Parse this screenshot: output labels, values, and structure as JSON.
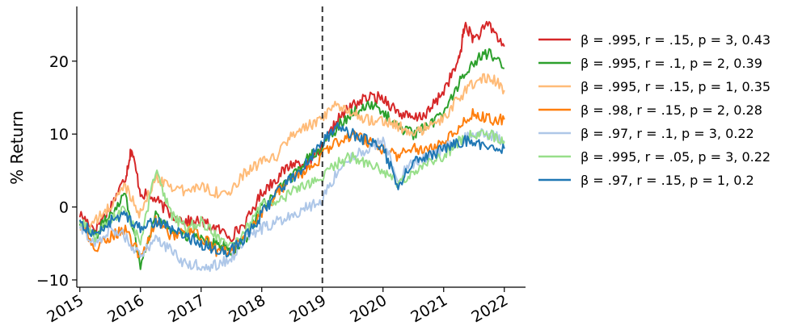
{
  "chart_data": {
    "type": "line",
    "ylabel": "% Return",
    "xlabel": "",
    "title": "",
    "x_ticks": [
      "2015",
      "2016",
      "2017",
      "2018",
      "2019",
      "2020",
      "2021",
      "2022"
    ],
    "y_ticks": [
      "−10",
      "0",
      "10",
      "20"
    ],
    "xlim": [
      2014.95,
      2022.35
    ],
    "ylim": [
      -11,
      27.5
    ],
    "vline": {
      "x": 2019.0,
      "style": "dashed"
    },
    "legend_position": "outside-right",
    "grid": false,
    "series": [
      {
        "name": "β = .995, r = .15, p = 3, 0.43",
        "color": "#d62728",
        "points": [
          [
            2015.0,
            -1
          ],
          [
            2015.25,
            -3
          ],
          [
            2015.5,
            0
          ],
          [
            2015.75,
            4
          ],
          [
            2015.85,
            8
          ],
          [
            2016.0,
            2
          ],
          [
            2016.25,
            1
          ],
          [
            2016.5,
            -1
          ],
          [
            2016.75,
            -2
          ],
          [
            2017.0,
            -2
          ],
          [
            2017.25,
            -3
          ],
          [
            2017.5,
            -4
          ],
          [
            2017.75,
            -2
          ],
          [
            2018.0,
            2
          ],
          [
            2018.25,
            4
          ],
          [
            2018.5,
            6
          ],
          [
            2018.75,
            6
          ],
          [
            2019.0,
            8
          ],
          [
            2019.25,
            12
          ],
          [
            2019.5,
            14
          ],
          [
            2019.75,
            15
          ],
          [
            2020.0,
            15
          ],
          [
            2020.25,
            13
          ],
          [
            2020.5,
            12
          ],
          [
            2020.75,
            13
          ],
          [
            2021.0,
            16
          ],
          [
            2021.25,
            20
          ],
          [
            2021.35,
            25
          ],
          [
            2021.5,
            23
          ],
          [
            2021.75,
            25
          ],
          [
            2022.0,
            22
          ]
        ]
      },
      {
        "name": "β = .995, r = .1, p = 2, 0.39",
        "color": "#2ca02c",
        "points": [
          [
            2015.0,
            -2
          ],
          [
            2015.25,
            -4
          ],
          [
            2015.5,
            -1
          ],
          [
            2015.75,
            2
          ],
          [
            2016.0,
            -8
          ],
          [
            2016.25,
            -1
          ],
          [
            2016.5,
            -3
          ],
          [
            2016.75,
            -4
          ],
          [
            2017.0,
            -4
          ],
          [
            2017.25,
            -5
          ],
          [
            2017.5,
            -6
          ],
          [
            2017.75,
            -4
          ],
          [
            2018.0,
            0
          ],
          [
            2018.25,
            2
          ],
          [
            2018.5,
            4
          ],
          [
            2018.75,
            7
          ],
          [
            2019.0,
            8
          ],
          [
            2019.25,
            11
          ],
          [
            2019.5,
            13
          ],
          [
            2019.75,
            14
          ],
          [
            2020.0,
            13
          ],
          [
            2020.25,
            11
          ],
          [
            2020.5,
            10
          ],
          [
            2020.75,
            11
          ],
          [
            2021.0,
            13
          ],
          [
            2021.25,
            17
          ],
          [
            2021.5,
            20
          ],
          [
            2021.75,
            21
          ],
          [
            2022.0,
            19
          ]
        ]
      },
      {
        "name": "β = .995, r = .15, p = 1, 0.35",
        "color": "#ffbb78",
        "points": [
          [
            2015.0,
            -3
          ],
          [
            2015.25,
            -2
          ],
          [
            2015.5,
            0
          ],
          [
            2015.75,
            3
          ],
          [
            2016.0,
            -1
          ],
          [
            2016.25,
            4
          ],
          [
            2016.5,
            3
          ],
          [
            2016.75,
            2
          ],
          [
            2017.0,
            3
          ],
          [
            2017.25,
            2
          ],
          [
            2017.5,
            2
          ],
          [
            2017.75,
            5
          ],
          [
            2018.0,
            6
          ],
          [
            2018.25,
            7
          ],
          [
            2018.5,
            10
          ],
          [
            2018.75,
            11
          ],
          [
            2019.0,
            12
          ],
          [
            2019.25,
            14
          ],
          [
            2019.5,
            13
          ],
          [
            2019.75,
            12
          ],
          [
            2020.0,
            12
          ],
          [
            2020.25,
            11
          ],
          [
            2020.5,
            10
          ],
          [
            2020.75,
            11
          ],
          [
            2021.0,
            12
          ],
          [
            2021.25,
            15
          ],
          [
            2021.5,
            17
          ],
          [
            2021.75,
            18
          ],
          [
            2022.0,
            16
          ]
        ]
      },
      {
        "name": "β = .98, r = .15, p = 2, 0.28",
        "color": "#ff7f0e",
        "points": [
          [
            2015.0,
            -2
          ],
          [
            2015.25,
            -6
          ],
          [
            2015.5,
            -4
          ],
          [
            2015.75,
            -3
          ],
          [
            2016.0,
            -7
          ],
          [
            2016.25,
            -2
          ],
          [
            2016.5,
            -4
          ],
          [
            2016.75,
            -3
          ],
          [
            2017.0,
            -4
          ],
          [
            2017.25,
            -6
          ],
          [
            2017.5,
            -6
          ],
          [
            2017.75,
            -4
          ],
          [
            2018.0,
            -1
          ],
          [
            2018.25,
            2
          ],
          [
            2018.5,
            4
          ],
          [
            2018.75,
            5
          ],
          [
            2019.0,
            7
          ],
          [
            2019.25,
            9
          ],
          [
            2019.5,
            10
          ],
          [
            2019.75,
            9
          ],
          [
            2020.0,
            8
          ],
          [
            2020.25,
            7
          ],
          [
            2020.5,
            8
          ],
          [
            2020.75,
            8
          ],
          [
            2021.0,
            9
          ],
          [
            2021.25,
            11
          ],
          [
            2021.5,
            13
          ],
          [
            2021.75,
            12
          ],
          [
            2022.0,
            12
          ]
        ]
      },
      {
        "name": "β = .97, r = .1, p = 3, 0.22",
        "color": "#aec7e8",
        "points": [
          [
            2015.0,
            -3
          ],
          [
            2015.25,
            -5
          ],
          [
            2015.5,
            -3
          ],
          [
            2015.75,
            -4
          ],
          [
            2016.0,
            -7
          ],
          [
            2016.25,
            -4
          ],
          [
            2016.5,
            -6
          ],
          [
            2016.75,
            -8
          ],
          [
            2017.0,
            -8
          ],
          [
            2017.25,
            -8
          ],
          [
            2017.5,
            -7
          ],
          [
            2017.75,
            -4
          ],
          [
            2018.0,
            -3
          ],
          [
            2018.25,
            -2
          ],
          [
            2018.5,
            -1
          ],
          [
            2018.75,
            0
          ],
          [
            2019.0,
            1
          ],
          [
            2019.25,
            5
          ],
          [
            2019.5,
            7
          ],
          [
            2019.75,
            8
          ],
          [
            2020.0,
            9
          ],
          [
            2020.25,
            4
          ],
          [
            2020.5,
            6
          ],
          [
            2020.75,
            7
          ],
          [
            2021.0,
            8
          ],
          [
            2021.25,
            9
          ],
          [
            2021.5,
            10
          ],
          [
            2021.75,
            10
          ],
          [
            2022.0,
            9
          ]
        ]
      },
      {
        "name": "β = .995, r = .05, p = 3, 0.22",
        "color": "#98df8a",
        "points": [
          [
            2015.0,
            -2
          ],
          [
            2015.25,
            -4
          ],
          [
            2015.5,
            -2
          ],
          [
            2015.75,
            0
          ],
          [
            2016.0,
            -5
          ],
          [
            2016.25,
            5
          ],
          [
            2016.5,
            -1
          ],
          [
            2016.75,
            -3
          ],
          [
            2017.0,
            -2
          ],
          [
            2017.25,
            -4
          ],
          [
            2017.5,
            -5
          ],
          [
            2017.75,
            -3
          ],
          [
            2018.0,
            0
          ],
          [
            2018.25,
            1
          ],
          [
            2018.5,
            2
          ],
          [
            2018.75,
            3
          ],
          [
            2019.0,
            4
          ],
          [
            2019.25,
            6
          ],
          [
            2019.5,
            7
          ],
          [
            2019.75,
            6
          ],
          [
            2020.0,
            5
          ],
          [
            2020.25,
            3
          ],
          [
            2020.5,
            5
          ],
          [
            2020.75,
            6
          ],
          [
            2021.0,
            7
          ],
          [
            2021.25,
            9
          ],
          [
            2021.5,
            10
          ],
          [
            2021.75,
            10
          ],
          [
            2022.0,
            9
          ]
        ]
      },
      {
        "name": "β = .97, r = .15, p = 1, 0.2",
        "color": "#1f77b4",
        "points": [
          [
            2015.0,
            -2
          ],
          [
            2015.25,
            -4
          ],
          [
            2015.5,
            -2
          ],
          [
            2015.75,
            -1
          ],
          [
            2016.0,
            -3
          ],
          [
            2016.25,
            -2
          ],
          [
            2016.5,
            -3
          ],
          [
            2016.75,
            -4
          ],
          [
            2017.0,
            -5
          ],
          [
            2017.25,
            -6
          ],
          [
            2017.5,
            -6
          ],
          [
            2017.75,
            -4
          ],
          [
            2018.0,
            -1
          ],
          [
            2018.25,
            2
          ],
          [
            2018.5,
            4
          ],
          [
            2018.75,
            6
          ],
          [
            2019.0,
            9
          ],
          [
            2019.25,
            11
          ],
          [
            2019.5,
            10
          ],
          [
            2019.75,
            9
          ],
          [
            2020.0,
            8
          ],
          [
            2020.25,
            3
          ],
          [
            2020.5,
            6
          ],
          [
            2020.75,
            7
          ],
          [
            2021.0,
            8
          ],
          [
            2021.25,
            9
          ],
          [
            2021.5,
            9
          ],
          [
            2021.75,
            8
          ],
          [
            2022.0,
            8
          ]
        ]
      }
    ]
  }
}
